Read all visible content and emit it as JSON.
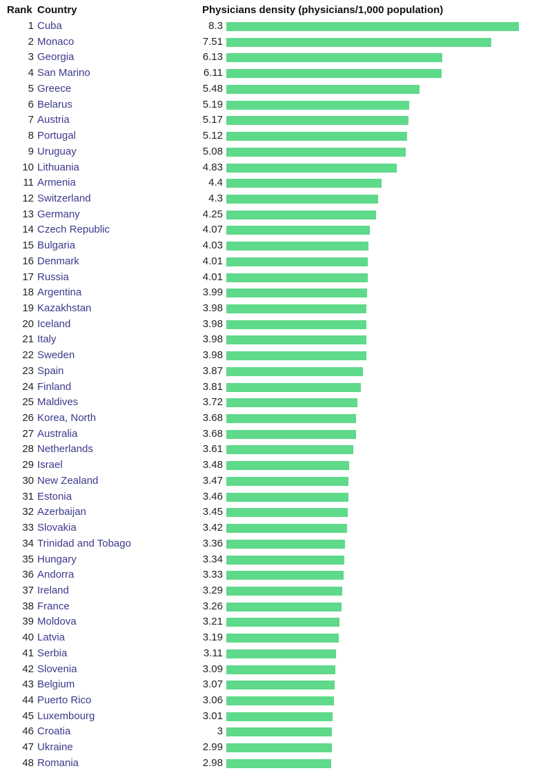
{
  "headers": {
    "rank": "Rank",
    "country": "Country",
    "value": "Physicians density (physicians/1,000 population)"
  },
  "colors": {
    "bar": "#5fd98a",
    "country_link": "#3a3a8c"
  },
  "chart_data": {
    "type": "bar",
    "orientation": "horizontal",
    "title": "",
    "value_label": "Physicians density (physicians/1,000 population)",
    "rows": [
      {
        "rank": "1",
        "country": "Cuba",
        "value": "8.3"
      },
      {
        "rank": "2",
        "country": "Monaco",
        "value": "7.51"
      },
      {
        "rank": "3",
        "country": "Georgia",
        "value": "6.13"
      },
      {
        "rank": "4",
        "country": "San Marino",
        "value": "6.11"
      },
      {
        "rank": "5",
        "country": "Greece",
        "value": "5.48"
      },
      {
        "rank": "6",
        "country": "Belarus",
        "value": "5.19"
      },
      {
        "rank": "7",
        "country": "Austria",
        "value": "5.17"
      },
      {
        "rank": "8",
        "country": "Portugal",
        "value": "5.12"
      },
      {
        "rank": "9",
        "country": "Uruguay",
        "value": "5.08"
      },
      {
        "rank": "10",
        "country": "Lithuania",
        "value": "4.83"
      },
      {
        "rank": "11",
        "country": "Armenia",
        "value": "4.4"
      },
      {
        "rank": "12",
        "country": "Switzerland",
        "value": "4.3"
      },
      {
        "rank": "13",
        "country": "Germany",
        "value": "4.25"
      },
      {
        "rank": "14",
        "country": "Czech Republic",
        "value": "4.07"
      },
      {
        "rank": "15",
        "country": "Bulgaria",
        "value": "4.03"
      },
      {
        "rank": "16",
        "country": "Denmark",
        "value": "4.01"
      },
      {
        "rank": "17",
        "country": "Russia",
        "value": "4.01"
      },
      {
        "rank": "18",
        "country": "Argentina",
        "value": "3.99"
      },
      {
        "rank": "19",
        "country": "Kazakhstan",
        "value": "3.98"
      },
      {
        "rank": "20",
        "country": "Iceland",
        "value": "3.98"
      },
      {
        "rank": "21",
        "country": "Italy",
        "value": "3.98"
      },
      {
        "rank": "22",
        "country": "Sweden",
        "value": "3.98"
      },
      {
        "rank": "23",
        "country": "Spain",
        "value": "3.87"
      },
      {
        "rank": "24",
        "country": "Finland",
        "value": "3.81"
      },
      {
        "rank": "25",
        "country": "Maldives",
        "value": "3.72"
      },
      {
        "rank": "26",
        "country": "Korea, North",
        "value": "3.68"
      },
      {
        "rank": "27",
        "country": "Australia",
        "value": "3.68"
      },
      {
        "rank": "28",
        "country": "Netherlands",
        "value": "3.61"
      },
      {
        "rank": "29",
        "country": "Israel",
        "value": "3.48"
      },
      {
        "rank": "30",
        "country": "New Zealand",
        "value": "3.47"
      },
      {
        "rank": "31",
        "country": "Estonia",
        "value": "3.46"
      },
      {
        "rank": "32",
        "country": "Azerbaijan",
        "value": "3.45"
      },
      {
        "rank": "33",
        "country": "Slovakia",
        "value": "3.42"
      },
      {
        "rank": "34",
        "country": "Trinidad and Tobago",
        "value": "3.36"
      },
      {
        "rank": "35",
        "country": "Hungary",
        "value": "3.34"
      },
      {
        "rank": "36",
        "country": "Andorra",
        "value": "3.33"
      },
      {
        "rank": "37",
        "country": "Ireland",
        "value": "3.29"
      },
      {
        "rank": "38",
        "country": "France",
        "value": "3.26"
      },
      {
        "rank": "39",
        "country": "Moldova",
        "value": "3.21"
      },
      {
        "rank": "40",
        "country": "Latvia",
        "value": "3.19"
      },
      {
        "rank": "41",
        "country": "Serbia",
        "value": "3.11"
      },
      {
        "rank": "42",
        "country": "Slovenia",
        "value": "3.09"
      },
      {
        "rank": "43",
        "country": "Belgium",
        "value": "3.07"
      },
      {
        "rank": "44",
        "country": "Puerto Rico",
        "value": "3.06"
      },
      {
        "rank": "45",
        "country": "Luxembourg",
        "value": "3.01"
      },
      {
        "rank": "46",
        "country": "Croatia",
        "value": "3"
      },
      {
        "rank": "47",
        "country": "Ukraine",
        "value": "2.99"
      },
      {
        "rank": "48",
        "country": "Romania",
        "value": "2.98"
      }
    ]
  }
}
